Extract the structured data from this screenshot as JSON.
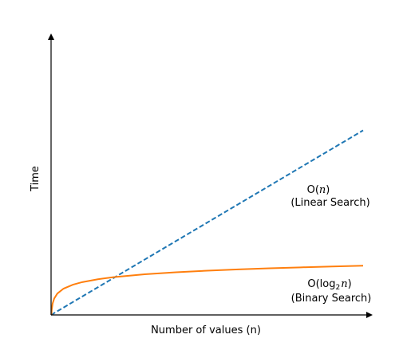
{
  "chart_data": {
    "type": "line",
    "xlabel": "Number of values (n)",
    "ylabel": "Time",
    "xlim": [
      0,
      1000
    ],
    "ylim": [
      0,
      1000
    ],
    "grid": false,
    "legend": "none",
    "series": [
      {
        "name": "Linear Search",
        "label_math_prefix": "O(",
        "label_math_var": "n",
        "label_math_suffix": ")",
        "label_text": "(Linear Search)",
        "style": "dashed",
        "color": "#1f77b4",
        "x": [
          0,
          100,
          200,
          300,
          400,
          500,
          600,
          700,
          800,
          900,
          1000
        ],
        "y": [
          0,
          58.6,
          117.2,
          175.8,
          234.4,
          293,
          351.6,
          410.2,
          468.8,
          527.4,
          586
        ]
      },
      {
        "name": "Binary Search",
        "label_math_prefix": "O(log",
        "label_math_sub": "2",
        "label_math_var": "n",
        "label_math_suffix": ")",
        "label_text": "(Binary Search)",
        "style": "solid",
        "color": "#ff7f0e",
        "x": [
          1,
          2,
          5,
          10,
          20,
          40,
          70,
          100,
          150,
          200,
          300,
          400,
          500,
          600,
          700,
          800,
          900,
          1000
        ],
        "y": [
          0,
          15.7,
          36.4,
          52.1,
          67.8,
          83.5,
          96.1,
          104.2,
          113.3,
          119.8,
          129,
          135.5,
          140.5,
          144.6,
          148.1,
          151.1,
          153.8,
          156.2
        ]
      }
    ]
  }
}
